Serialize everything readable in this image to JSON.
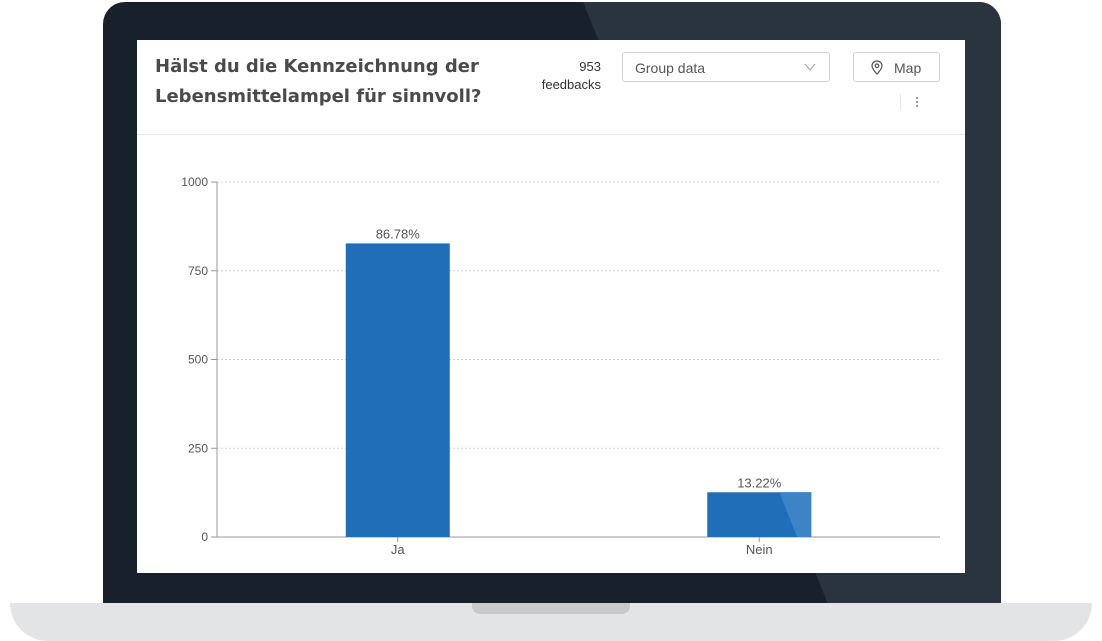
{
  "widget": {
    "title": "Hälst du die Kennzeichnung der Lebensmittelampel für sinnvoll?",
    "feedback_count": "953",
    "feedback_label": "feedbacks",
    "group_select": {
      "selected": "Group data"
    },
    "map_button": {
      "label": "Map"
    }
  },
  "icons": {
    "dropdown": "chevron-down-icon",
    "map": "map-pin-icon",
    "more": "more-vertical-icon"
  },
  "colors": {
    "bar": "#206eb8",
    "bar_accent": "#3d84c6",
    "grid": "#cfcfcf",
    "axis": "#999999",
    "text": "#555555"
  },
  "chart_data": {
    "type": "bar",
    "categories": [
      "Ja",
      "Nein"
    ],
    "values": [
      827,
      126
    ],
    "data_labels": [
      "86.78%",
      "13.22%"
    ],
    "yticks": [
      0,
      250,
      500,
      750,
      1000
    ],
    "ylim": [
      0,
      1000
    ],
    "grid": true,
    "title": "",
    "xlabel": "",
    "ylabel": ""
  }
}
